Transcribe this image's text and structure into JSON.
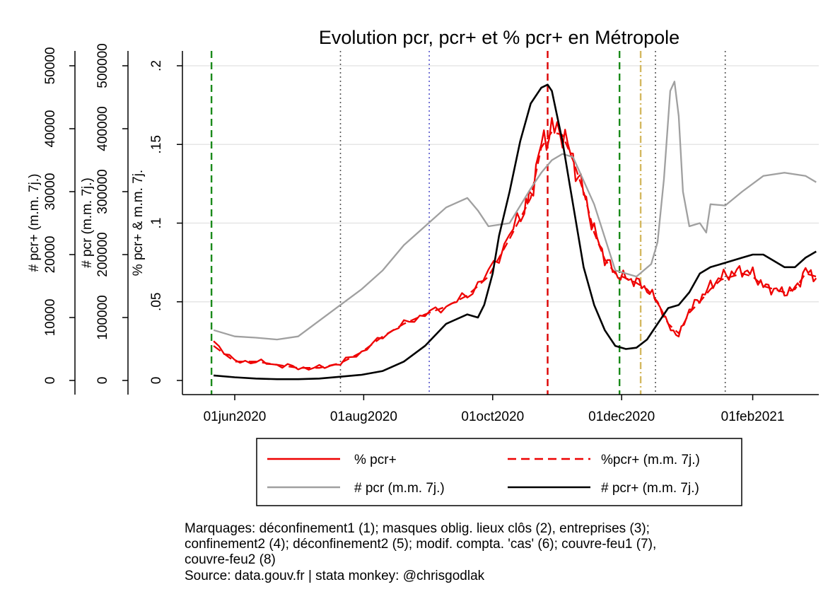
{
  "chart_data": {
    "type": "line",
    "title": "Evolution pcr, pcr+ et % pcr+ en Métropole",
    "x_axis": {
      "ticks": [
        "01jun2020",
        "01aug2020",
        "01oct2020",
        "01dec2020",
        "01feb2021"
      ],
      "tick_days": [
        0,
        61,
        122,
        183,
        245
      ],
      "range_days": [
        -12,
        285
      ]
    },
    "y_axes": [
      {
        "id": "pct",
        "label": "% pcr+ & m.m. 7j.",
        "ticks": [
          "0",
          ".05",
          ".1",
          ".15",
          ".2"
        ],
        "tick_values": [
          0,
          0.05,
          0.1,
          0.15,
          0.2
        ],
        "range": [
          0,
          0.2
        ]
      },
      {
        "id": "pcr",
        "label": "# pcr (m.m. 7j.)",
        "ticks": [
          "0",
          "100000",
          "200000",
          "300000",
          "400000",
          "500000"
        ],
        "tick_values": [
          0,
          100000,
          200000,
          300000,
          400000,
          500000
        ],
        "range": [
          0,
          500000
        ]
      },
      {
        "id": "pos",
        "label": "# pcr+ (m.m. 7j.)",
        "ticks": [
          "0",
          "10000",
          "20000",
          "30000",
          "40000",
          "50000"
        ],
        "tick_values": [
          0,
          10000,
          20000,
          30000,
          40000,
          50000
        ],
        "range": [
          0,
          50000
        ]
      }
    ],
    "gridlines_y": [
      0.05,
      0.1,
      0.15,
      0.2
    ],
    "markers": [
      {
        "day": -11,
        "color": "#1a8a1a",
        "style": "dashed"
      },
      {
        "day": -12,
        "color": "#1a8a1a",
        "style": "dashed",
        "note": "edge"
      },
      {
        "day": 50,
        "color": "#555555",
        "style": "dotted"
      },
      {
        "day": 92,
        "color": "#5555cc",
        "style": "dotted"
      },
      {
        "day": 148,
        "color": "#dd0000",
        "style": "dashed"
      },
      {
        "day": 182,
        "color": "#1a8a1a",
        "style": "dashed"
      },
      {
        "day": 192,
        "color": "#d4b860",
        "style": "dashdot"
      },
      {
        "day": 199,
        "color": "#555555",
        "style": "dotted"
      },
      {
        "day": 232,
        "color": "#555555",
        "style": "dotted"
      }
    ],
    "series": [
      {
        "name": "% pcr+",
        "axis": "pct",
        "color": "#ee0000",
        "dash": "solid",
        "noisy": true,
        "x": [
          -10,
          0,
          10,
          20,
          30,
          40,
          50,
          60,
          70,
          80,
          90,
          100,
          110,
          120,
          130,
          137,
          140,
          145,
          150,
          155,
          160,
          165,
          170,
          175,
          180,
          185,
          190,
          195,
          200,
          205,
          210,
          215,
          220,
          225,
          230,
          235,
          240,
          245,
          250,
          255,
          260,
          265,
          270,
          275
        ],
        "values": [
          0.025,
          0.012,
          0.012,
          0.01,
          0.008,
          0.008,
          0.011,
          0.018,
          0.028,
          0.036,
          0.042,
          0.047,
          0.054,
          0.068,
          0.092,
          0.11,
          0.118,
          0.15,
          0.16,
          0.158,
          0.14,
          0.12,
          0.095,
          0.078,
          0.068,
          0.065,
          0.063,
          0.058,
          0.05,
          0.035,
          0.028,
          0.045,
          0.052,
          0.06,
          0.066,
          0.068,
          0.07,
          0.068,
          0.06,
          0.058,
          0.056,
          0.058,
          0.07,
          0.065
        ]
      },
      {
        "name": "%pcr+ (m.m. 7j.)",
        "axis": "pct",
        "color": "#ee0000",
        "dash": "dashed",
        "x": [
          -10,
          0,
          10,
          20,
          30,
          40,
          50,
          60,
          70,
          80,
          90,
          100,
          110,
          120,
          130,
          137,
          140,
          145,
          150,
          155,
          160,
          165,
          170,
          175,
          180,
          185,
          190,
          195,
          200,
          205,
          210,
          215,
          220,
          225,
          230,
          235,
          240,
          245,
          250,
          255,
          260,
          265,
          270,
          275
        ],
        "values": [
          0.022,
          0.012,
          0.012,
          0.01,
          0.008,
          0.008,
          0.011,
          0.018,
          0.028,
          0.036,
          0.042,
          0.047,
          0.054,
          0.066,
          0.09,
          0.108,
          0.116,
          0.148,
          0.158,
          0.156,
          0.14,
          0.12,
          0.094,
          0.077,
          0.068,
          0.065,
          0.062,
          0.058,
          0.05,
          0.036,
          0.03,
          0.043,
          0.05,
          0.058,
          0.064,
          0.066,
          0.068,
          0.066,
          0.06,
          0.058,
          0.056,
          0.058,
          0.068,
          0.066
        ]
      },
      {
        "name": "# pcr (m.m. 7j.)",
        "axis": "pcr",
        "color": "#a0a0a0",
        "dash": "solid",
        "x": [
          -10,
          0,
          10,
          20,
          30,
          40,
          50,
          60,
          70,
          80,
          90,
          100,
          110,
          115,
          120,
          130,
          140,
          145,
          150,
          155,
          160,
          170,
          180,
          190,
          197,
          200,
          203,
          206,
          208,
          210,
          212,
          215,
          220,
          223,
          225,
          232,
          240,
          250,
          260,
          270,
          275
        ],
        "values": [
          80000,
          70000,
          68000,
          65000,
          70000,
          95000,
          120000,
          145000,
          175000,
          215000,
          245000,
          275000,
          290000,
          270000,
          245000,
          250000,
          305000,
          330000,
          350000,
          360000,
          355000,
          280000,
          175000,
          165000,
          185000,
          220000,
          320000,
          460000,
          475000,
          420000,
          300000,
          245000,
          250000,
          235000,
          280000,
          278000,
          300000,
          325000,
          330000,
          325000,
          315000
        ]
      },
      {
        "name": "# pcr+ (m.m. 7j.)",
        "axis": "pos",
        "color": "#000000",
        "dash": "solid",
        "x": [
          -10,
          0,
          10,
          20,
          30,
          40,
          50,
          60,
          70,
          80,
          90,
          100,
          110,
          115,
          118,
          122,
          125,
          130,
          135,
          140,
          145,
          148,
          150,
          155,
          158,
          160,
          165,
          170,
          175,
          180,
          185,
          190,
          195,
          200,
          205,
          210,
          215,
          220,
          225,
          230,
          235,
          240,
          245,
          250,
          255,
          260,
          265,
          270,
          275
        ],
        "values": [
          800,
          500,
          300,
          200,
          200,
          300,
          600,
          900,
          1500,
          3000,
          5500,
          9000,
          10500,
          10000,
          12000,
          17000,
          23000,
          30000,
          38000,
          44000,
          46500,
          47000,
          46000,
          38000,
          32000,
          28000,
          18000,
          12000,
          8000,
          5500,
          5000,
          5200,
          6500,
          9000,
          11500,
          12000,
          14000,
          17000,
          18000,
          18500,
          19000,
          19500,
          20000,
          20000,
          19000,
          18000,
          18000,
          19500,
          20500
        ]
      }
    ],
    "legend": {
      "position": "bottom",
      "entries": [
        "% pcr+",
        "%pcr+ (m.m. 7j.)",
        "# pcr (m.m. 7j.)",
        "# pcr+ (m.m. 7j.)"
      ]
    },
    "notes": [
      "Marquages: déconfinement1 (1); masques oblig. lieux clôs (2), entreprises (3);",
      "confinement2 (4); déconfinement2 (5); modif. compta. 'cas' (6); couvre-feu1 (7),",
      "couvre-feu2 (8)",
      "Source: data.gouv.fr | stata monkey: @chrisgodlak"
    ]
  }
}
